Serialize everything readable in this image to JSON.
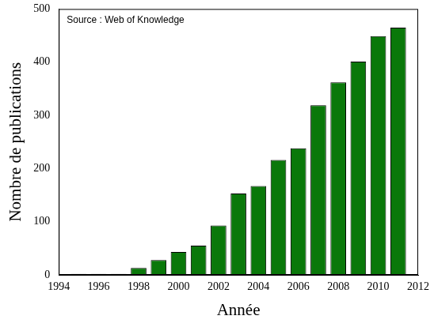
{
  "chart_data": {
    "type": "bar",
    "annotation": "Source : Web of Knowledge",
    "xlabel": "Année",
    "ylabel": "Nombre de publications",
    "x": [
      1995,
      1996,
      1997,
      1998,
      1999,
      2000,
      2001,
      2002,
      2003,
      2004,
      2005,
      2006,
      2007,
      2008,
      2009,
      2010,
      2011
    ],
    "values": [
      2,
      2,
      2,
      13,
      28,
      43,
      55,
      93,
      153,
      167,
      216,
      238,
      319,
      362,
      401,
      449,
      465
    ],
    "color": "#0a780a",
    "xlim": [
      1994,
      2012
    ],
    "xticks": [
      1994,
      1996,
      1998,
      2000,
      2002,
      2004,
      2006,
      2008,
      2010,
      2012
    ],
    "ylim": [
      0,
      500
    ],
    "yticks": [
      0,
      100,
      200,
      300,
      400,
      500
    ],
    "grid": false
  }
}
